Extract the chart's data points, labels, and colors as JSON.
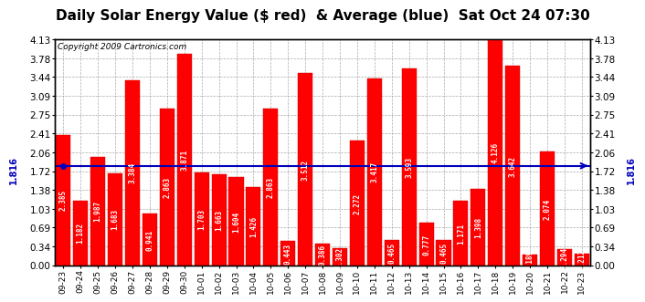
{
  "title": "Daily Solar Energy Value ($ red)  & Average (blue)  Sat Oct 24 07:30",
  "copyright": "Copyright 2009 Cartronics.com",
  "categories": [
    "09-23",
    "09-24",
    "09-25",
    "09-26",
    "09-27",
    "09-28",
    "09-29",
    "09-30",
    "10-01",
    "10-02",
    "10-03",
    "10-04",
    "10-05",
    "10-06",
    "10-07",
    "10-08",
    "10-09",
    "10-10",
    "10-11",
    "10-12",
    "10-13",
    "10-14",
    "10-15",
    "10-16",
    "10-17",
    "10-18",
    "10-19",
    "10-20",
    "10-21",
    "10-22",
    "10-23"
  ],
  "values": [
    2.385,
    1.182,
    1.987,
    1.683,
    3.384,
    0.941,
    2.863,
    3.871,
    1.703,
    1.663,
    1.604,
    1.426,
    2.863,
    0.443,
    3.512,
    0.386,
    0.302,
    2.272,
    3.417,
    0.465,
    3.593,
    0.777,
    0.465,
    1.171,
    1.398,
    4.126,
    3.642,
    0.189,
    2.074,
    0.294,
    0.212
  ],
  "average": 1.816,
  "bar_color": "#ff0000",
  "avg_line_color": "#0000bb",
  "background_color": "#ffffff",
  "plot_bg_color": "#ffffff",
  "grid_color": "#aaaaaa",
  "ylim": [
    0,
    4.13
  ],
  "yticks": [
    0.0,
    0.34,
    0.69,
    1.03,
    1.38,
    1.72,
    2.06,
    2.41,
    2.75,
    3.09,
    3.44,
    3.78,
    4.13
  ],
  "title_fontsize": 11,
  "copyright_fontsize": 6.5,
  "bar_label_fontsize": 5.5,
  "avg_label": "1.816",
  "avg_label_fontsize": 7
}
